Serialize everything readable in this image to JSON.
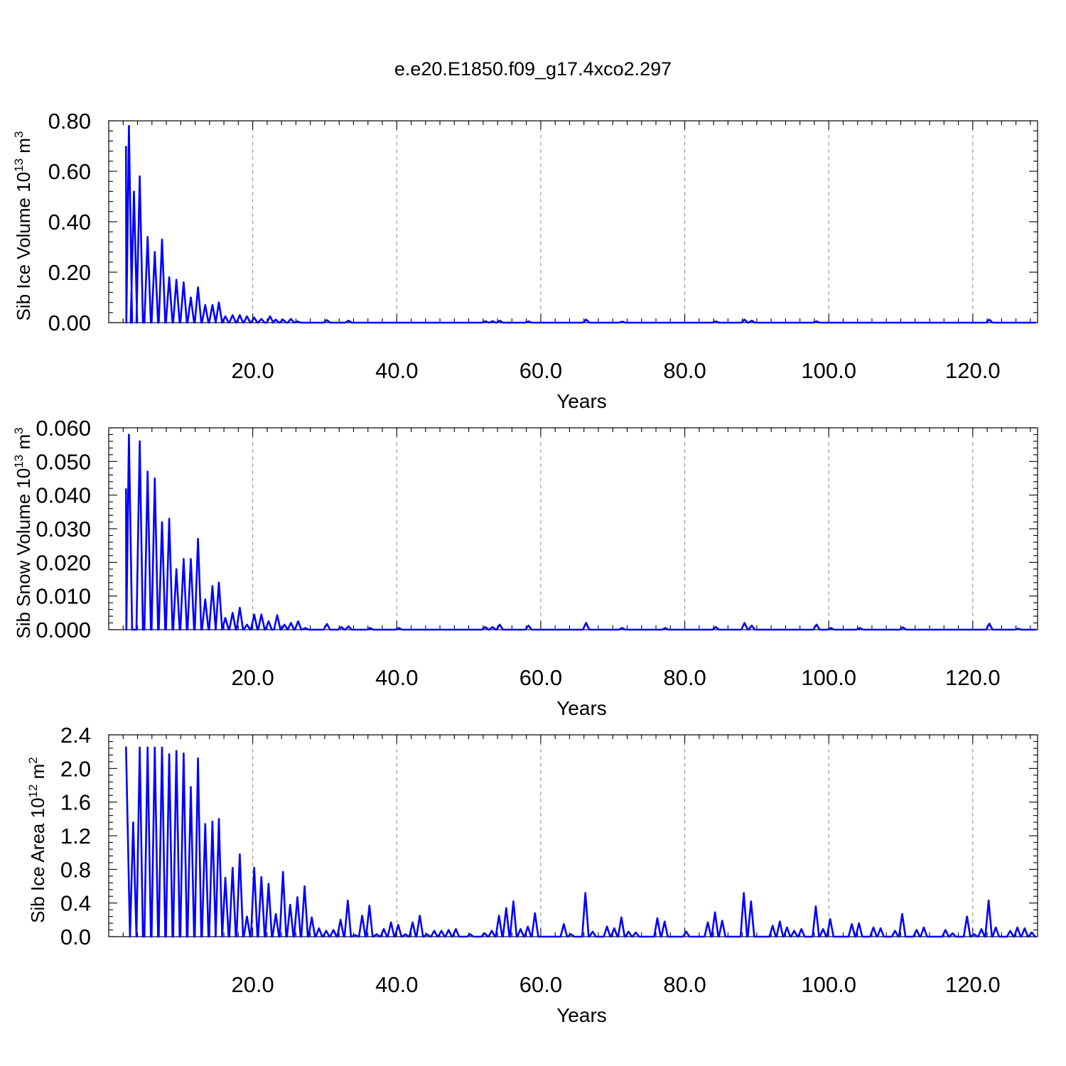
{
  "figure": {
    "title": "e.e20.E1850.f09_g17.4xco2.297"
  },
  "chart_data": [
    {
      "type": "line",
      "ylabel": "Sib Ice Volume",
      "yunit_base": "10",
      "yunit_exp": "13",
      "yunit_rest": "m",
      "yunit_rest_exp": "3",
      "xlabel": "Years",
      "xlim": [
        0,
        129
      ],
      "ylim": [
        0,
        0.8
      ],
      "xticks": [
        20,
        40,
        60,
        80,
        100,
        120
      ],
      "xtick_labels": [
        "20.0",
        "40.0",
        "60.0",
        "80.0",
        "100.0",
        "120.0"
      ],
      "yticks": [
        0,
        0.2,
        0.4,
        0.6,
        0.8
      ],
      "ytick_labels": [
        "0.00",
        "0.20",
        "0.40",
        "0.60",
        "0.80"
      ],
      "grid": "x dashed",
      "series": [
        {
          "color": "#0000ff",
          "baseline": 0,
          "start": [
            2.4,
            0.7
          ],
          "peaks": [
            [
              2.8,
              0.78
            ],
            [
              3.5,
              0.52
            ],
            [
              4.3,
              0.58
            ],
            [
              5.4,
              0.34
            ],
            [
              6.4,
              0.28
            ],
            [
              7.4,
              0.33
            ],
            [
              8.4,
              0.18
            ],
            [
              9.4,
              0.17
            ],
            [
              10.4,
              0.16
            ],
            [
              11.4,
              0.1
            ],
            [
              12.4,
              0.14
            ],
            [
              13.4,
              0.07
            ],
            [
              14.4,
              0.07
            ],
            [
              15.3,
              0.08
            ],
            [
              16.2,
              0.025
            ],
            [
              17.2,
              0.03
            ],
            [
              18.2,
              0.03
            ],
            [
              19.2,
              0.025
            ],
            [
              20.2,
              0.02
            ],
            [
              21.2,
              0.015
            ],
            [
              22.4,
              0.025
            ],
            [
              23.2,
              0.012
            ],
            [
              24.2,
              0.012
            ],
            [
              25.3,
              0.015
            ],
            [
              26.2,
              0.005
            ],
            [
              30.3,
              0.01
            ],
            [
              33.3,
              0.008
            ],
            [
              52.3,
              0.006
            ],
            [
              53.3,
              0.006
            ],
            [
              54.3,
              0.008
            ],
            [
              58.3,
              0.005
            ],
            [
              66.3,
              0.012
            ],
            [
              71.3,
              0.004
            ],
            [
              84.3,
              0.005
            ],
            [
              88.3,
              0.012
            ],
            [
              89.3,
              0.008
            ],
            [
              98.3,
              0.005
            ],
            [
              122.3,
              0.012
            ]
          ]
        }
      ]
    },
    {
      "type": "line",
      "ylabel": "Sib Snow Volume",
      "yunit_base": "10",
      "yunit_exp": "13",
      "yunit_rest": "m",
      "yunit_rest_exp": "3",
      "xlabel": "Years",
      "xlim": [
        0,
        129
      ],
      "ylim": [
        0,
        0.06
      ],
      "xticks": [
        20,
        40,
        60,
        80,
        100,
        120
      ],
      "xtick_labels": [
        "20.0",
        "40.0",
        "60.0",
        "80.0",
        "100.0",
        "120.0"
      ],
      "yticks": [
        0,
        0.01,
        0.02,
        0.03,
        0.04,
        0.05,
        0.06
      ],
      "ytick_labels": [
        "0.000",
        "0.010",
        "0.020",
        "0.030",
        "0.040",
        "0.050",
        "0.060"
      ],
      "grid": "x dashed",
      "series": [
        {
          "color": "#0000ff",
          "baseline": 0,
          "start": [
            2.4,
            0.042
          ],
          "peaks": [
            [
              2.8,
              0.058
            ],
            [
              4.3,
              0.056
            ],
            [
              5.4,
              0.047
            ],
            [
              6.4,
              0.045
            ],
            [
              7.4,
              0.032
            ],
            [
              8.4,
              0.033
            ],
            [
              9.4,
              0.018
            ],
            [
              10.4,
              0.021
            ],
            [
              11.4,
              0.021
            ],
            [
              12.4,
              0.027
            ],
            [
              13.4,
              0.009
            ],
            [
              14.4,
              0.013
            ],
            [
              15.3,
              0.014
            ],
            [
              16.2,
              0.0035
            ],
            [
              17.2,
              0.005
            ],
            [
              18.2,
              0.0065
            ],
            [
              19.2,
              0.0015
            ],
            [
              20.2,
              0.0045
            ],
            [
              21.2,
              0.0045
            ],
            [
              22.2,
              0.0025
            ],
            [
              23.4,
              0.0043
            ],
            [
              24.4,
              0.0015
            ],
            [
              25.3,
              0.002
            ],
            [
              26.3,
              0.0025
            ],
            [
              27.3,
              0.0005
            ],
            [
              30.3,
              0.0017
            ],
            [
              32.3,
              0.0008
            ],
            [
              33.3,
              0.001
            ],
            [
              36.3,
              0.0005
            ],
            [
              40.3,
              0.0005
            ],
            [
              52.3,
              0.0008
            ],
            [
              53.3,
              0.0008
            ],
            [
              54.3,
              0.0015
            ],
            [
              58.3,
              0.0012
            ],
            [
              66.3,
              0.002
            ],
            [
              71.3,
              0.0005
            ],
            [
              77.3,
              0.0005
            ],
            [
              84.3,
              0.0008
            ],
            [
              88.3,
              0.002
            ],
            [
              89.3,
              0.0012
            ],
            [
              98.3,
              0.0015
            ],
            [
              100.3,
              0.0005
            ],
            [
              104.3,
              0.0005
            ],
            [
              110.3,
              0.0007
            ],
            [
              122.3,
              0.0018
            ],
            [
              126.3,
              0.0003
            ]
          ]
        }
      ]
    },
    {
      "type": "line",
      "ylabel": "Sib Ice Area",
      "yunit_base": "10",
      "yunit_exp": "12",
      "yunit_rest": "m",
      "yunit_rest_exp": "2",
      "xlabel": "Years",
      "xlim": [
        0,
        129
      ],
      "ylim": [
        0,
        2.4
      ],
      "xticks": [
        20,
        40,
        60,
        80,
        100,
        120
      ],
      "xtick_labels": [
        "20.0",
        "40.0",
        "60.0",
        "80.0",
        "100.0",
        "120.0"
      ],
      "yticks": [
        0,
        0.4,
        0.8,
        1.2,
        1.6,
        2.0,
        2.4
      ],
      "ytick_labels": [
        "0.0",
        "0.4",
        "0.8",
        "1.2",
        "1.6",
        "2.0",
        "2.4"
      ],
      "grid": "x dashed",
      "series": [
        {
          "color": "#0000ff",
          "baseline": 0,
          "start": [
            2.4,
            2.26
          ],
          "peaks": [
            [
              3.4,
              1.36
            ],
            [
              4.3,
              2.25
            ],
            [
              5.4,
              2.25
            ],
            [
              6.4,
              2.25
            ],
            [
              7.4,
              2.25
            ],
            [
              8.4,
              2.17
            ],
            [
              9.4,
              2.21
            ],
            [
              10.4,
              2.18
            ],
            [
              11.4,
              1.78
            ],
            [
              12.4,
              2.12
            ],
            [
              13.4,
              1.34
            ],
            [
              14.4,
              1.37
            ],
            [
              15.3,
              1.4
            ],
            [
              16.2,
              0.7
            ],
            [
              17.2,
              0.82
            ],
            [
              18.2,
              0.98
            ],
            [
              19.2,
              0.24
            ],
            [
              20.2,
              0.82
            ],
            [
              21.2,
              0.71
            ],
            [
              22.2,
              0.63
            ],
            [
              23.2,
              0.27
            ],
            [
              24.2,
              0.77
            ],
            [
              25.2,
              0.38
            ],
            [
              26.2,
              0.47
            ],
            [
              27.2,
              0.6
            ],
            [
              28.2,
              0.23
            ],
            [
              29.2,
              0.1
            ],
            [
              30.2,
              0.07
            ],
            [
              31.2,
              0.08
            ],
            [
              32.2,
              0.2
            ],
            [
              33.2,
              0.43
            ],
            [
              34.2,
              0.02
            ],
            [
              35.2,
              0.25
            ],
            [
              36.2,
              0.37
            ],
            [
              37.2,
              0.03
            ],
            [
              38.2,
              0.09
            ],
            [
              39.2,
              0.17
            ],
            [
              40.2,
              0.14
            ],
            [
              41.2,
              0.03
            ],
            [
              42.2,
              0.17
            ],
            [
              43.2,
              0.25
            ],
            [
              44.2,
              0.03
            ],
            [
              45.2,
              0.07
            ],
            [
              46.2,
              0.07
            ],
            [
              47.2,
              0.08
            ],
            [
              48.2,
              0.09
            ],
            [
              50.2,
              0.03
            ],
            [
              52.2,
              0.04
            ],
            [
              53.2,
              0.07
            ],
            [
              54.2,
              0.25
            ],
            [
              55.2,
              0.34
            ],
            [
              56.2,
              0.42
            ],
            [
              57.2,
              0.09
            ],
            [
              58.2,
              0.12
            ],
            [
              59.2,
              0.28
            ],
            [
              63.2,
              0.15
            ],
            [
              64.2,
              0.03
            ],
            [
              66.2,
              0.52
            ],
            [
              67.2,
              0.06
            ],
            [
              69.2,
              0.12
            ],
            [
              70.2,
              0.1
            ],
            [
              71.2,
              0.23
            ],
            [
              72.2,
              0.06
            ],
            [
              73.2,
              0.05
            ],
            [
              76.2,
              0.22
            ],
            [
              77.2,
              0.18
            ],
            [
              80.2,
              0.06
            ],
            [
              83.2,
              0.17
            ],
            [
              84.2,
              0.29
            ],
            [
              85.2,
              0.19
            ],
            [
              88.2,
              0.52
            ],
            [
              89.2,
              0.42
            ],
            [
              92.2,
              0.13
            ],
            [
              93.2,
              0.18
            ],
            [
              94.2,
              0.11
            ],
            [
              95.2,
              0.07
            ],
            [
              96.2,
              0.09
            ],
            [
              98.2,
              0.36
            ],
            [
              99.2,
              0.09
            ],
            [
              100.2,
              0.21
            ],
            [
              103.2,
              0.15
            ],
            [
              104.2,
              0.16
            ],
            [
              106.2,
              0.11
            ],
            [
              107.2,
              0.1
            ],
            [
              109.2,
              0.07
            ],
            [
              110.2,
              0.27
            ],
            [
              112.2,
              0.08
            ],
            [
              113.2,
              0.11
            ],
            [
              116.2,
              0.08
            ],
            [
              117.2,
              0.04
            ],
            [
              119.2,
              0.24
            ],
            [
              120.2,
              0.03
            ],
            [
              121.2,
              0.09
            ],
            [
              122.2,
              0.43
            ],
            [
              123.2,
              0.11
            ],
            [
              125.2,
              0.07
            ],
            [
              126.2,
              0.11
            ],
            [
              127.2,
              0.1
            ],
            [
              128.2,
              0.05
            ]
          ]
        }
      ]
    }
  ]
}
